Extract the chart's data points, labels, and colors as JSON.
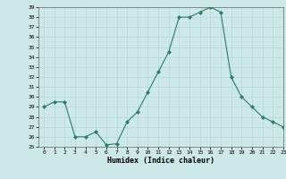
{
  "x": [
    0,
    1,
    2,
    3,
    4,
    5,
    6,
    7,
    8,
    9,
    10,
    11,
    12,
    13,
    14,
    15,
    16,
    17,
    18,
    19,
    20,
    21,
    22,
    23
  ],
  "y": [
    29,
    29.5,
    29.5,
    26,
    26,
    26.5,
    25.2,
    25.3,
    27.5,
    28.5,
    30.5,
    32.5,
    34.5,
    38,
    38,
    38.5,
    39,
    38.5,
    32,
    30,
    29,
    28,
    27.5,
    27
  ],
  "xlabel": "Humidex (Indice chaleur)",
  "ylim": [
    25,
    39
  ],
  "xlim": [
    -0.5,
    23
  ],
  "ytick_min": 25,
  "ytick_max": 39,
  "xticks": [
    0,
    1,
    2,
    3,
    4,
    5,
    6,
    7,
    8,
    9,
    10,
    11,
    12,
    13,
    14,
    15,
    16,
    17,
    18,
    19,
    20,
    21,
    22,
    23
  ],
  "line_color": "#2d7a6a",
  "marker_color": "#2d7a6a",
  "bg_color": "#cce8e8",
  "grid_color": "#b8d8d8"
}
